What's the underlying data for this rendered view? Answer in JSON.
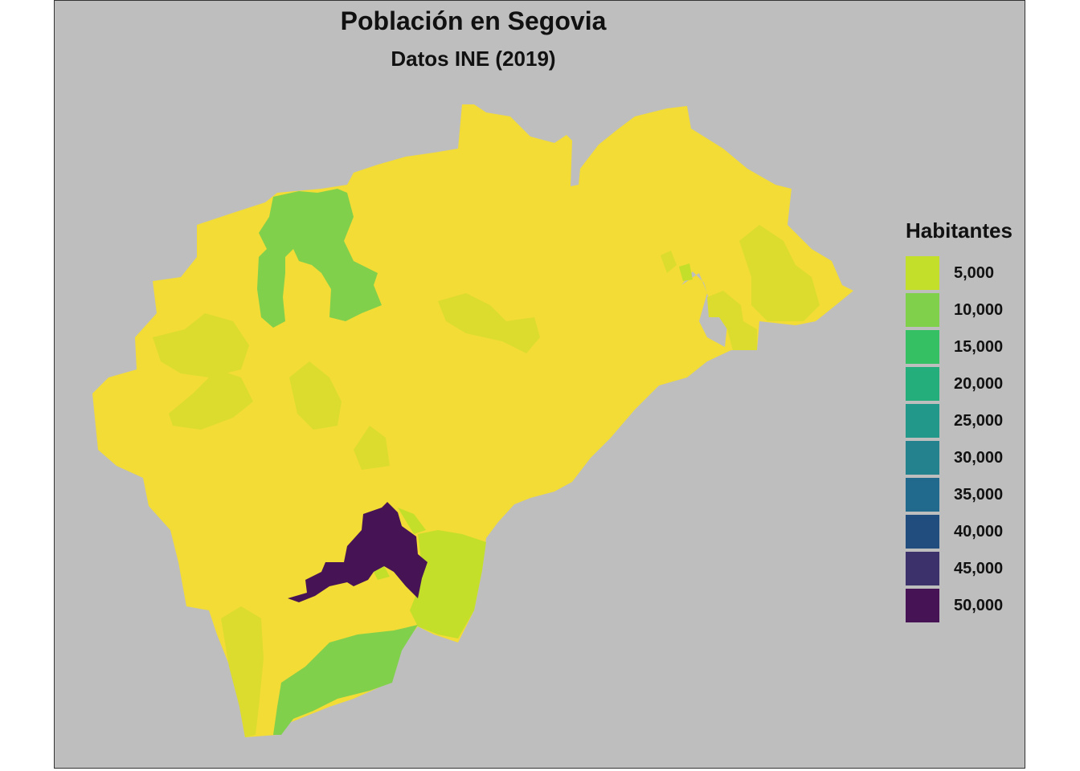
{
  "title": "Población en Segovia",
  "subtitle": "Datos INE (2019)",
  "legend": {
    "title": "Habitantes",
    "items": [
      {
        "label": "5,000",
        "color": "#c4df2a"
      },
      {
        "label": "10,000",
        "color": "#80d04c"
      },
      {
        "label": "15,000",
        "color": "#35c163"
      },
      {
        "label": "20,000",
        "color": "#24ae7b"
      },
      {
        "label": "25,000",
        "color": "#219889"
      },
      {
        "label": "30,000",
        "color": "#23828e"
      },
      {
        "label": "35,000",
        "color": "#226a8d"
      },
      {
        "label": "40,000",
        "color": "#214d7e"
      },
      {
        "label": "45,000",
        "color": "#3d316b"
      },
      {
        "label": "50,000",
        "color": "#461455"
      }
    ]
  },
  "colors": {
    "background": "#bebebe",
    "low_population": "#f2dc35",
    "mid_low": "#dcdc2e",
    "light_green": "#c4df2a",
    "green": "#80d04c",
    "capital": "#461455"
  }
}
